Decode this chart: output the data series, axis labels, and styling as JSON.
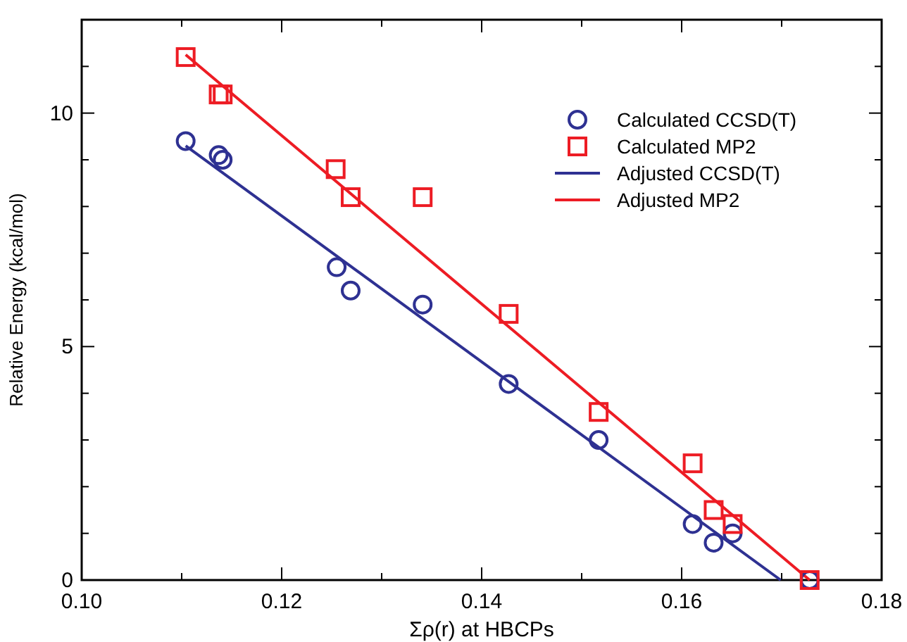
{
  "chart_data": {
    "type": "scatter",
    "xlabel": "Σρ(r)  at HBCPs",
    "ylabel": "Relative Energy (kcal/mol)",
    "xlim": [
      0.1,
      0.18
    ],
    "ylim": [
      0,
      12
    ],
    "xticks": [
      {
        "value": 0.1,
        "label": "0.10"
      },
      {
        "value": 0.11,
        "label": null
      },
      0.12,
      {
        "value": 0.13,
        "label": null
      },
      0.14,
      {
        "value": 0.15,
        "label": null
      },
      0.16,
      {
        "value": 0.17,
        "label": null
      },
      0.18
    ],
    "yticks": [
      0,
      {
        "value": 1,
        "label": null
      },
      {
        "value": 2,
        "label": null
      },
      {
        "value": 3,
        "label": null
      },
      {
        "value": 4,
        "label": null
      },
      5,
      {
        "value": 6,
        "label": null
      },
      {
        "value": 7,
        "label": null
      },
      {
        "value": 8,
        "label": null
      },
      {
        "value": 9,
        "label": null
      },
      10,
      {
        "value": 11,
        "label": null
      },
      {
        "value": 12,
        "label": null
      }
    ],
    "grid": false,
    "legend": "top right",
    "series": [
      {
        "name": "Calculated CCSD(T)",
        "marker": "circle",
        "color": "#2e3192",
        "x": [
          0.1104,
          0.1137,
          0.1141,
          0.1255,
          0.1269,
          0.1341,
          0.1427,
          0.1517,
          0.1611,
          0.1632,
          0.1651,
          0.1728
        ],
        "values": [
          9.4,
          9.1,
          9.0,
          6.7,
          6.2,
          5.9,
          4.2,
          3.0,
          1.2,
          0.8,
          1.0,
          0.0
        ]
      },
      {
        "name": "Calculated MP2",
        "marker": "square",
        "color": "#ed1c24",
        "x": [
          0.1104,
          0.1137,
          0.1141,
          0.1254,
          0.1269,
          0.1341,
          0.1427,
          0.1517,
          0.1611,
          0.1632,
          0.1651,
          0.1728
        ],
        "values": [
          11.2,
          10.4,
          10.4,
          8.8,
          8.2,
          8.2,
          5.7,
          3.6,
          2.5,
          1.5,
          1.2,
          0.0
        ]
      },
      {
        "name": "Adjusted CCSD(T)",
        "type": "line",
        "marker": "none",
        "line_style": "solid",
        "color": "#2e3192",
        "x": [
          0.1104,
          0.1699
        ],
        "values": [
          9.3,
          0
        ]
      },
      {
        "name": "Adjusted MP2",
        "type": "line",
        "marker": "none",
        "line_style": "solid",
        "color": "#ed1c24",
        "x": [
          0.1104,
          0.1728
        ],
        "values": [
          11.25,
          0
        ]
      }
    ]
  }
}
